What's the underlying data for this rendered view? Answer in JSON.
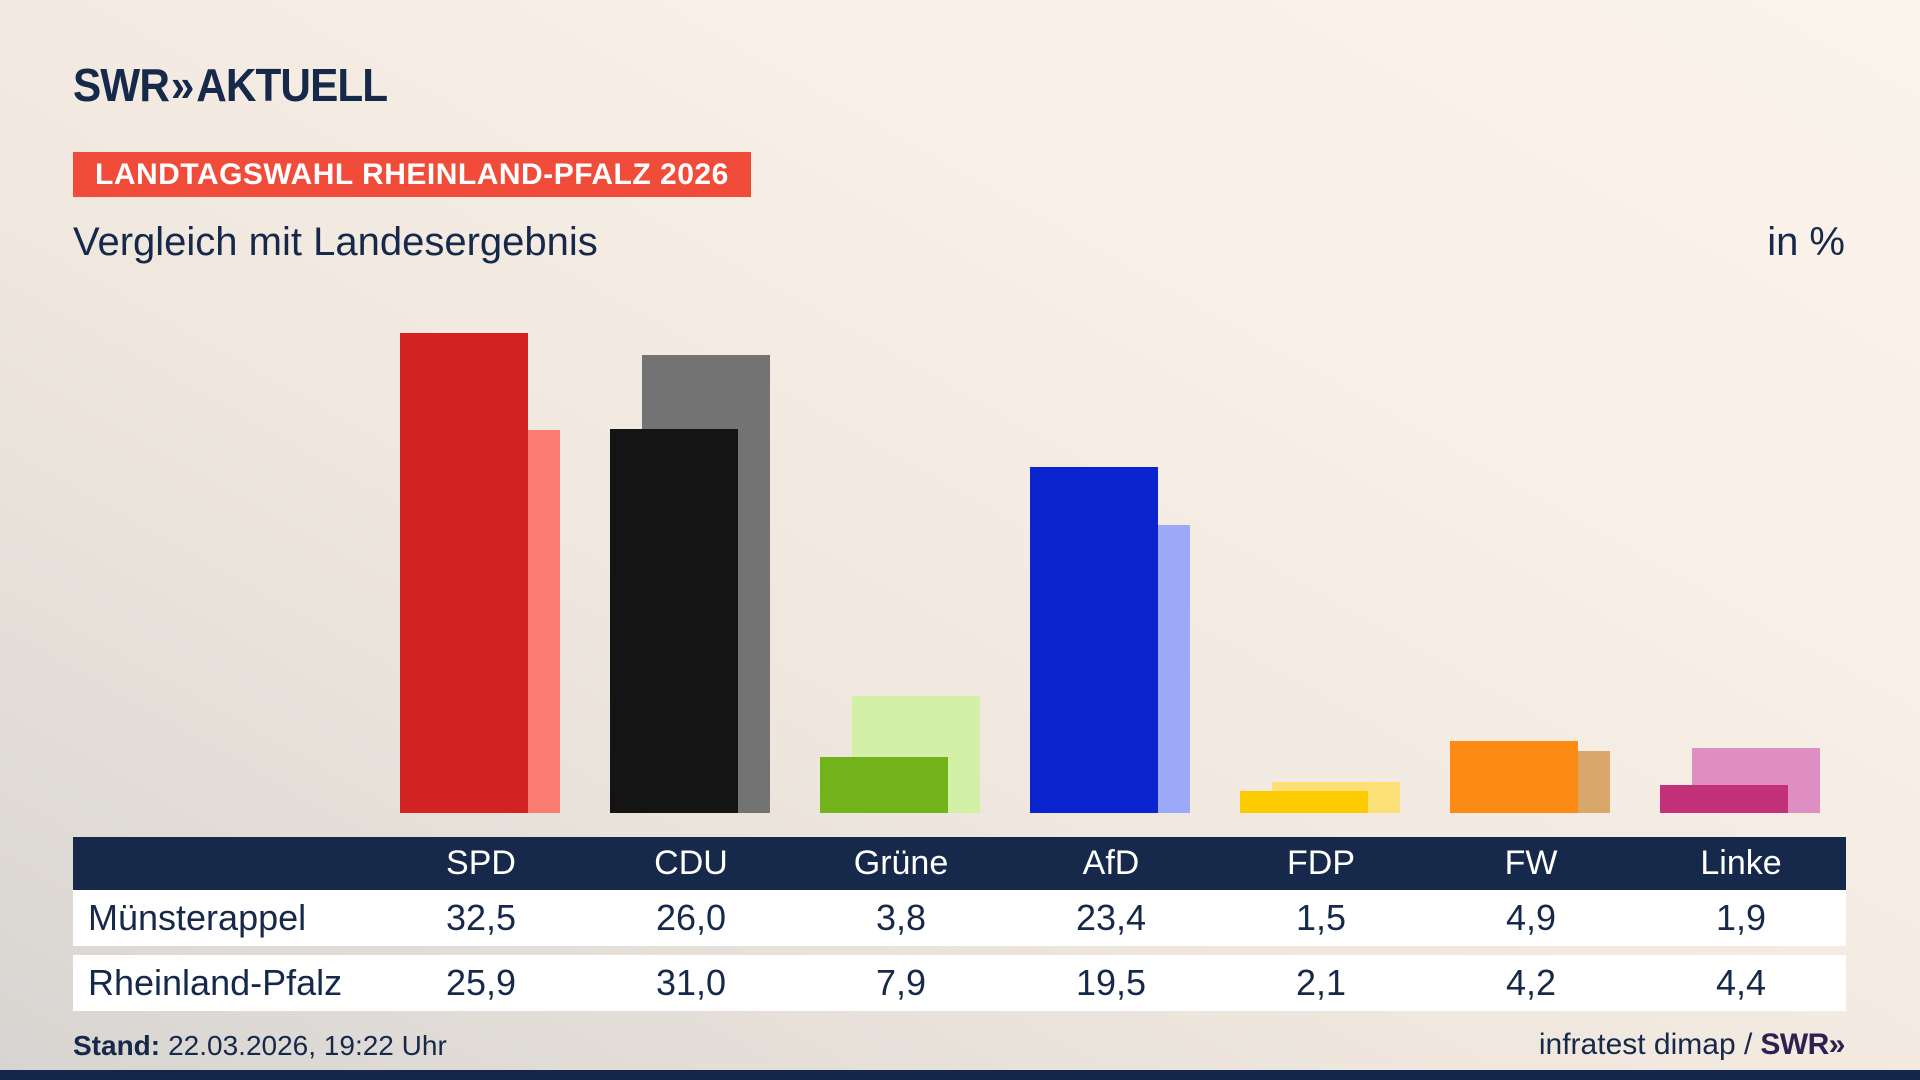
{
  "header": {
    "logo_brand": "SWR",
    "logo_chevrons": "»",
    "logo_suffix": "AKTUELL",
    "badge": "LANDTAGSWAHL RHEINLAND-PFALZ 2026",
    "title": "Vergleich mit Landesergebnis",
    "unit_label": "in %"
  },
  "chart_data": {
    "type": "bar",
    "categories": [
      "SPD",
      "CDU",
      "Grüne",
      "AfD",
      "FDP",
      "FW",
      "Linke"
    ],
    "series": [
      {
        "name": "Münsterappel",
        "values": [
          32.5,
          26.0,
          3.8,
          23.4,
          1.5,
          4.9,
          1.9
        ]
      },
      {
        "name": "Rheinland-Pfalz",
        "values": [
          25.9,
          31.0,
          7.9,
          19.5,
          2.1,
          4.2,
          4.4
        ]
      }
    ],
    "title": "Vergleich mit Landesergebnis",
    "ylabel": "in %",
    "ylim": [
      0,
      33
    ],
    "grid": false,
    "legend_position": "table-below",
    "colors": {
      "main": [
        "#d32222",
        "#141414",
        "#72b31c",
        "#0b24cd",
        "#fdcc00",
        "#fb8b14",
        "#c23179"
      ],
      "light": [
        "#fb7d72",
        "#737373",
        "#d3f0a7",
        "#9ca9f8",
        "#fbe077",
        "#d9a76a",
        "#de8ec2"
      ]
    }
  },
  "table": {
    "columns": [
      "SPD",
      "CDU",
      "Grüne",
      "AfD",
      "FDP",
      "FW",
      "Linke"
    ],
    "rows": [
      {
        "label": "Münsterappel",
        "values": [
          "32,5",
          "26,0",
          "3,8",
          "23,4",
          "1,5",
          "4,9",
          "1,9"
        ]
      },
      {
        "label": "Rheinland-Pfalz",
        "values": [
          "25,9",
          "31,0",
          "7,9",
          "19,5",
          "2,1",
          "4,2",
          "4,4"
        ]
      }
    ]
  },
  "footer": {
    "stand_label": "Stand:",
    "stand_value": "22.03.2026, 19:22 Uhr",
    "source_text": "infratest dimap /",
    "source_brand": "SWR»"
  },
  "theme_colors": {
    "background_cream": "#f8efe6",
    "background_shade": "#d7d4d1",
    "navy": "#16294a",
    "badge_red": "#f14b3a",
    "table_row_bg": "#ffffff",
    "source_brand_color": "#2e2150"
  }
}
